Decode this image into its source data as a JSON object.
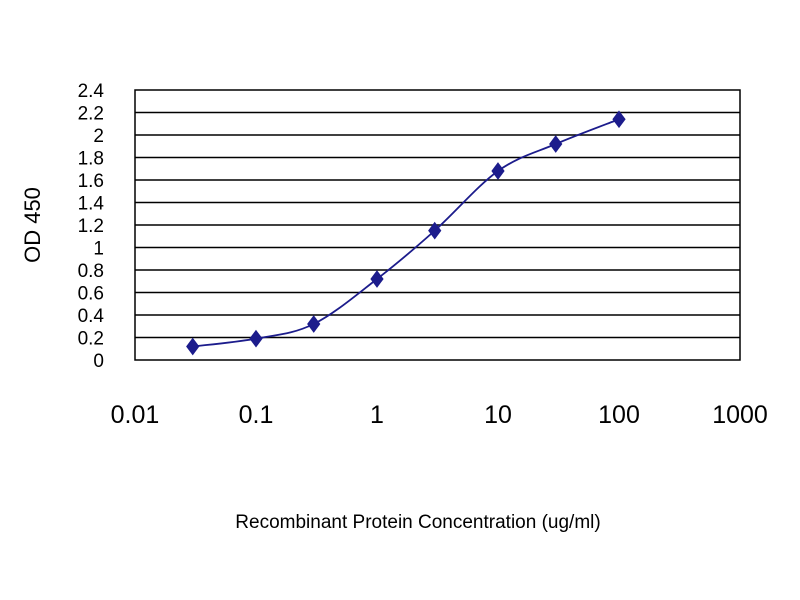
{
  "chart_data": {
    "type": "line",
    "title": "",
    "xlabel": "Recombinant Protein Concentration (ug/ml)",
    "ylabel": "OD 450",
    "x_scale": "log",
    "xlim": [
      0.01,
      1000
    ],
    "ylim": [
      0,
      2.4
    ],
    "x_ticks": [
      "0.01",
      "0.1",
      "1",
      "10",
      "100",
      "1000"
    ],
    "y_ticks": [
      "0",
      "0.2",
      "0.4",
      "0.6",
      "0.8",
      "1",
      "1.2",
      "1.4",
      "1.6",
      "1.8",
      "2",
      "2.2",
      "2.4"
    ],
    "grid": "horizontal",
    "legend": "none",
    "series": [
      {
        "color": "#1c1c8c",
        "marker": "diamond",
        "x": [
          0.03,
          0.1,
          0.3,
          1,
          3,
          10,
          30,
          100
        ],
        "y": [
          0.12,
          0.19,
          0.32,
          0.72,
          1.15,
          1.68,
          1.92,
          2.14
        ]
      }
    ]
  }
}
